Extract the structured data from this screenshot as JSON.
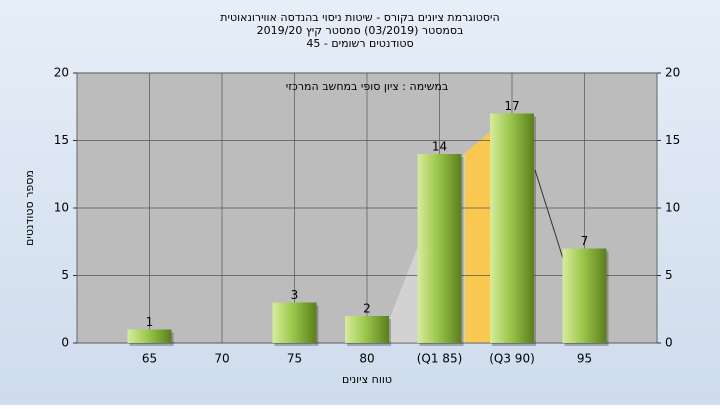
{
  "chart_data": {
    "type": "bar",
    "title": "היסטוגרמת ציונים בקורס - שיטות ניסוי בהנדסה אווירונאוטית",
    "subtitle": "בסמסטר  (03/2019)  סמסטר קיץ  2019/20",
    "subtitle2": "סטודנטים רשומים - 45",
    "annotation": "במשימה : ציון סופי במחשב המרכזי",
    "xlabel": "טווח ציונים",
    "ylabel": "מספר סטודנטים",
    "categories": [
      "65",
      "70",
      "75",
      "80",
      "(Q1 85)",
      "(Q3 90)",
      "95"
    ],
    "values": [
      1,
      null,
      3,
      2,
      14,
      17,
      7
    ],
    "color": "#8cb43c",
    "ylim": [
      0,
      20
    ],
    "yticks": [
      0,
      5,
      10,
      15,
      20
    ],
    "y2lim": [
      0,
      20
    ],
    "y2ticks": [
      0,
      5,
      10,
      15,
      20
    ],
    "grid": true
  }
}
